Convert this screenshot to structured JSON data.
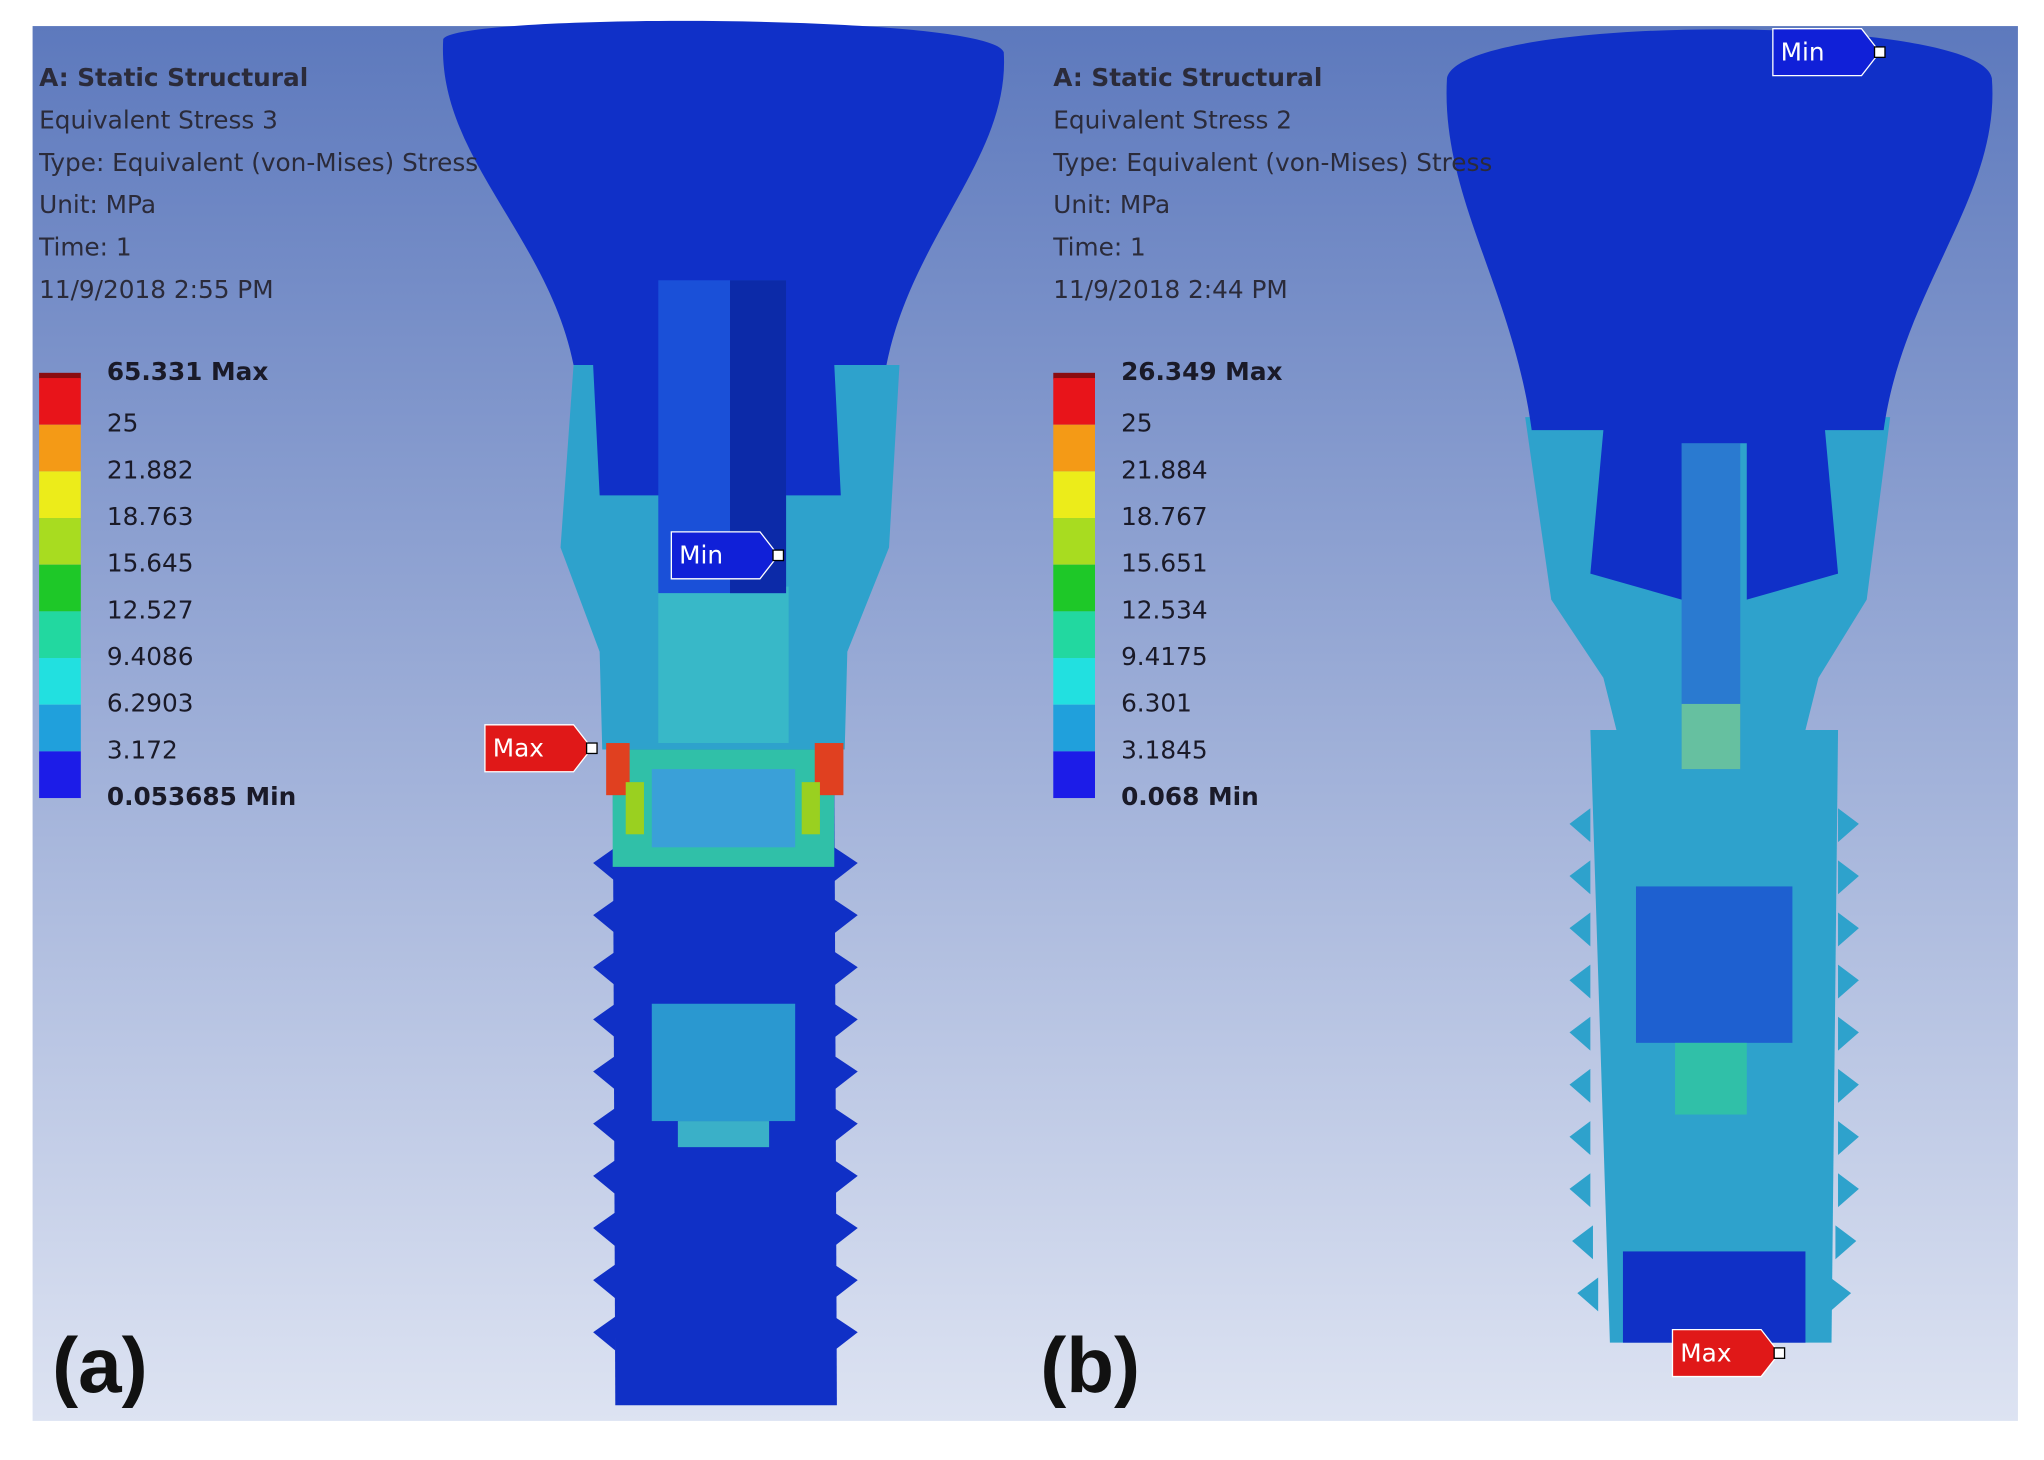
{
  "panels": [
    {
      "label": "(a)",
      "header": [
        "A: Static Structural",
        "Equivalent Stress 3",
        "Type: Equivalent (von-Mises) Stress",
        "Unit: MPa",
        "Time: 1",
        "11/9/2018 2:55 PM"
      ],
      "legend": [
        "65.331 Max",
        "25",
        "21.882",
        "18.763",
        "15.645",
        "12.527",
        "9.4086",
        "6.2903",
        "3.172",
        "0.053685 Min"
      ],
      "min_tag": "Min",
      "max_tag": "Max"
    },
    {
      "label": "(b)",
      "header": [
        "A: Static Structural",
        "Equivalent Stress 2",
        "Type: Equivalent (von-Mises) Stress",
        "Unit: MPa",
        "Time: 1",
        "11/9/2018 2:44 PM"
      ],
      "legend": [
        "26.349 Max",
        "25",
        "21.884",
        "18.767",
        "15.651",
        "12.534",
        "9.4175",
        "6.301",
        "3.1845",
        "0.068 Min"
      ],
      "min_tag": "Min",
      "max_tag": "Max"
    }
  ]
}
